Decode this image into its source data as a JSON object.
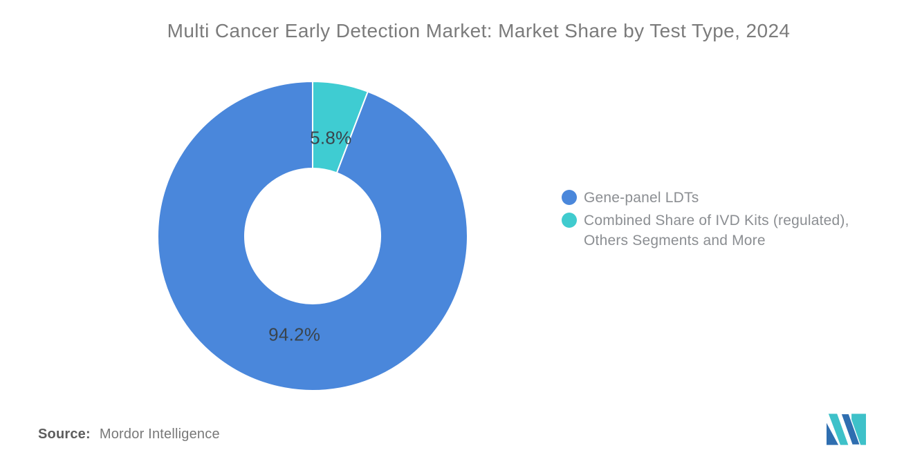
{
  "title": {
    "text": "Multi Cancer Early Detection Market: Market Share by Test Type, 2024"
  },
  "chart_data": {
    "type": "pie",
    "subtype": "donut",
    "title": "Multi Cancer Early Detection Market: Market Share by Test Type, 2024",
    "unit": "%",
    "total": 100,
    "start_angle_deg": 0,
    "direction": "clockwise",
    "inner_radius_ratio": 0.4375,
    "slice_border_color": "#ffffff",
    "slice_label_color": "#3a444c",
    "slices": [
      {
        "label": "Combined Share of IVD Kits (regulated), Others Segments and More",
        "value": 5.8,
        "display_label": "5.8%",
        "color": "#3fccd2"
      },
      {
        "label": "Gene-panel LDTs",
        "value": 94.2,
        "display_label": "94.2%",
        "color": "#4a87db"
      }
    ],
    "legend_position": "right",
    "legend": [
      {
        "label": "Gene-panel LDTs",
        "color": "#4a87db"
      },
      {
        "label": "Combined Share of IVD Kits (regulated),\nOthers Segments and More",
        "color": "#40cbce"
      }
    ]
  },
  "source": {
    "prefix": "Source:",
    "text": "Mordor Intelligence"
  },
  "logo": {
    "name": "Mordor Intelligence logo",
    "teal": "#3ec1c9",
    "blue": "#2f6eb0"
  }
}
